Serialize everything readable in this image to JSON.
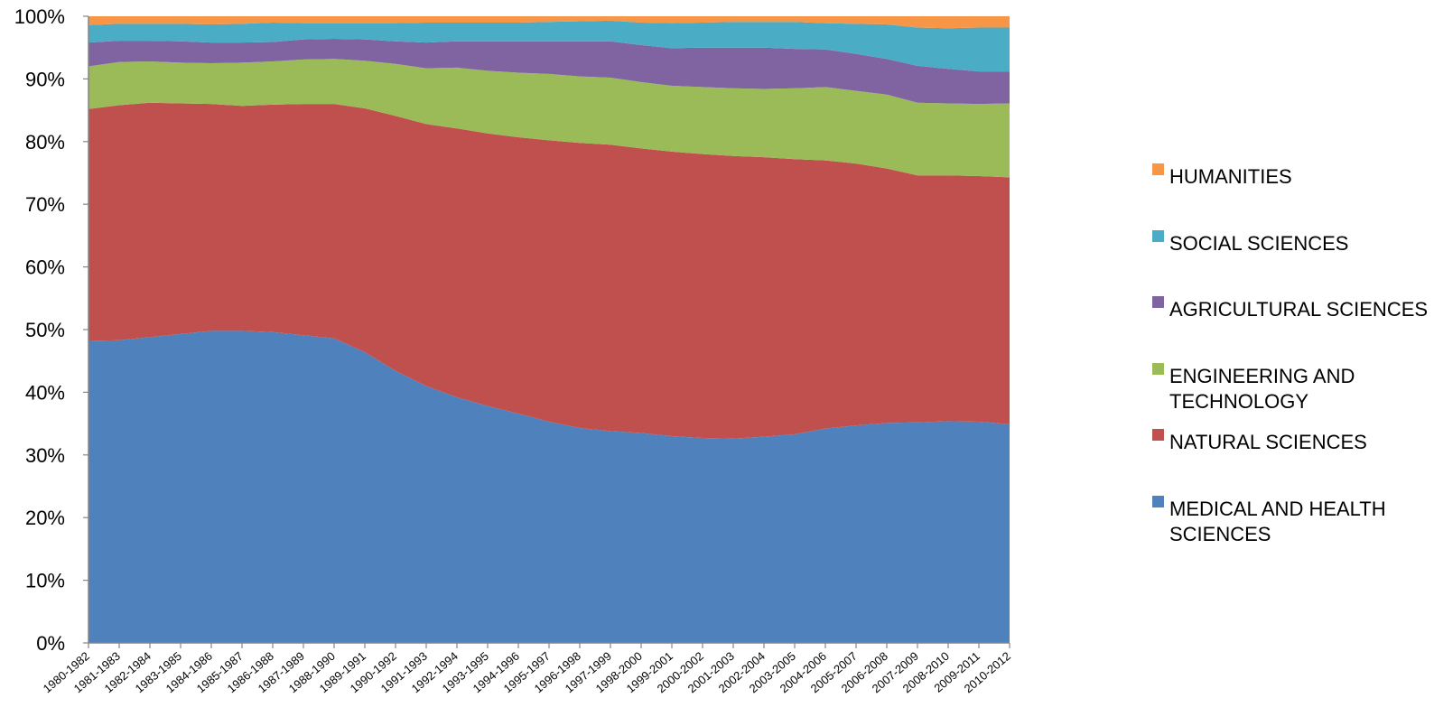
{
  "chart_data": {
    "type": "area",
    "stacked_percent": true,
    "categories": [
      "1980-1982",
      "1981-1983",
      "1982-1984",
      "1983-1985",
      "1984-1986",
      "1985-1987",
      "1986-1988",
      "1987-1989",
      "1988-1990",
      "1989-1991",
      "1990-1992",
      "1991-1993",
      "1992-1994",
      "1993-1995",
      "1994-1996",
      "1995-1997",
      "1996-1998",
      "1997-1999",
      "1998-2000",
      "1999-2001",
      "2000-2002",
      "2001-2003",
      "2002-2004",
      "2003-2005",
      "2004-2006",
      "2005-2007",
      "2006-2008",
      "2007-2009",
      "2008-2010",
      "2009-2011",
      "2010-2012"
    ],
    "y_ticks": [
      "0%",
      "10%",
      "20%",
      "30%",
      "40%",
      "50%",
      "60%",
      "70%",
      "80%",
      "90%",
      "100%"
    ],
    "ylim": [
      0,
      100
    ],
    "legend_position": "right",
    "series": [
      {
        "name": "MEDICAL AND HEALTH SCIENCES",
        "color": "#4F81BD",
        "values": [
          48.2,
          48.3,
          48.8,
          49.3,
          49.8,
          49.8,
          49.6,
          49.1,
          48.6,
          46.4,
          43.4,
          41.0,
          39.2,
          37.8,
          36.6,
          35.3,
          34.3,
          33.8,
          33.5,
          33.0,
          32.7,
          32.6,
          32.9,
          33.3,
          34.2,
          34.7,
          35.1,
          35.2,
          35.4,
          35.3,
          34.9
        ]
      },
      {
        "name": "NATURAL SCIENCES",
        "color": "#C0504D",
        "values": [
          37.0,
          37.5,
          37.4,
          36.8,
          36.2,
          35.9,
          36.3,
          36.9,
          37.4,
          38.9,
          40.7,
          41.8,
          42.9,
          43.5,
          44.1,
          44.9,
          45.5,
          45.7,
          45.4,
          45.4,
          45.3,
          45.1,
          44.6,
          43.9,
          42.8,
          41.8,
          40.6,
          39.4,
          39.2,
          39.2,
          39.4
        ]
      },
      {
        "name": "ENGINEERING AND TECHNOLOGY",
        "color": "#9BBB59",
        "values": [
          6.8,
          6.9,
          6.6,
          6.5,
          6.5,
          6.9,
          6.9,
          7.1,
          7.2,
          7.6,
          8.3,
          8.9,
          9.7,
          10.0,
          10.3,
          10.6,
          10.6,
          10.7,
          10.6,
          10.5,
          10.7,
          10.8,
          10.9,
          11.3,
          11.7,
          11.6,
          11.8,
          11.6,
          11.5,
          11.5,
          11.8
        ]
      },
      {
        "name": "AGRICULTURAL SCIENCES",
        "color": "#8064A2",
        "values": [
          3.8,
          3.4,
          3.3,
          3.4,
          3.3,
          3.2,
          3.1,
          3.2,
          3.2,
          3.4,
          3.6,
          4.1,
          4.2,
          4.7,
          5.0,
          5.2,
          5.6,
          5.8,
          5.9,
          6.0,
          6.3,
          6.5,
          6.6,
          6.3,
          6.0,
          5.9,
          5.7,
          5.9,
          5.5,
          5.2,
          5.1
        ]
      },
      {
        "name": "SOCIAL SCIENCES",
        "color": "#4BACC6",
        "values": [
          2.8,
          2.7,
          2.7,
          2.8,
          2.9,
          3.0,
          3.1,
          2.6,
          2.5,
          2.6,
          2.9,
          3.2,
          3.0,
          3.0,
          3.0,
          3.1,
          3.2,
          3.3,
          3.6,
          4.0,
          4.0,
          4.1,
          4.1,
          4.3,
          4.2,
          4.8,
          5.5,
          6.1,
          6.5,
          7.0,
          7.0
        ]
      },
      {
        "name": "HUMANITIES",
        "color": "#F79646",
        "values": [
          1.4,
          1.2,
          1.2,
          1.2,
          1.3,
          1.2,
          1.0,
          1.1,
          1.1,
          1.1,
          1.1,
          1.0,
          1.0,
          1.0,
          1.0,
          0.9,
          0.8,
          0.7,
          1.0,
          1.1,
          1.0,
          0.9,
          0.9,
          0.9,
          1.1,
          1.2,
          1.3,
          1.8,
          1.9,
          1.8,
          1.8
        ]
      }
    ],
    "legend": [
      {
        "lines": [
          "HUMANITIES"
        ],
        "color": "#F79646"
      },
      {
        "lines": [
          "SOCIAL SCIENCES"
        ],
        "color": "#4BACC6"
      },
      {
        "lines": [
          "AGRICULTURAL SCIENCES"
        ],
        "color": "#8064A2"
      },
      {
        "lines": [
          "ENGINEERING AND",
          "TECHNOLOGY"
        ],
        "color": "#9BBB59"
      },
      {
        "lines": [
          "NATURAL SCIENCES"
        ],
        "color": "#C0504D"
      },
      {
        "lines": [
          "MEDICAL AND HEALTH",
          "SCIENCES"
        ],
        "color": "#4F81BD"
      }
    ]
  }
}
